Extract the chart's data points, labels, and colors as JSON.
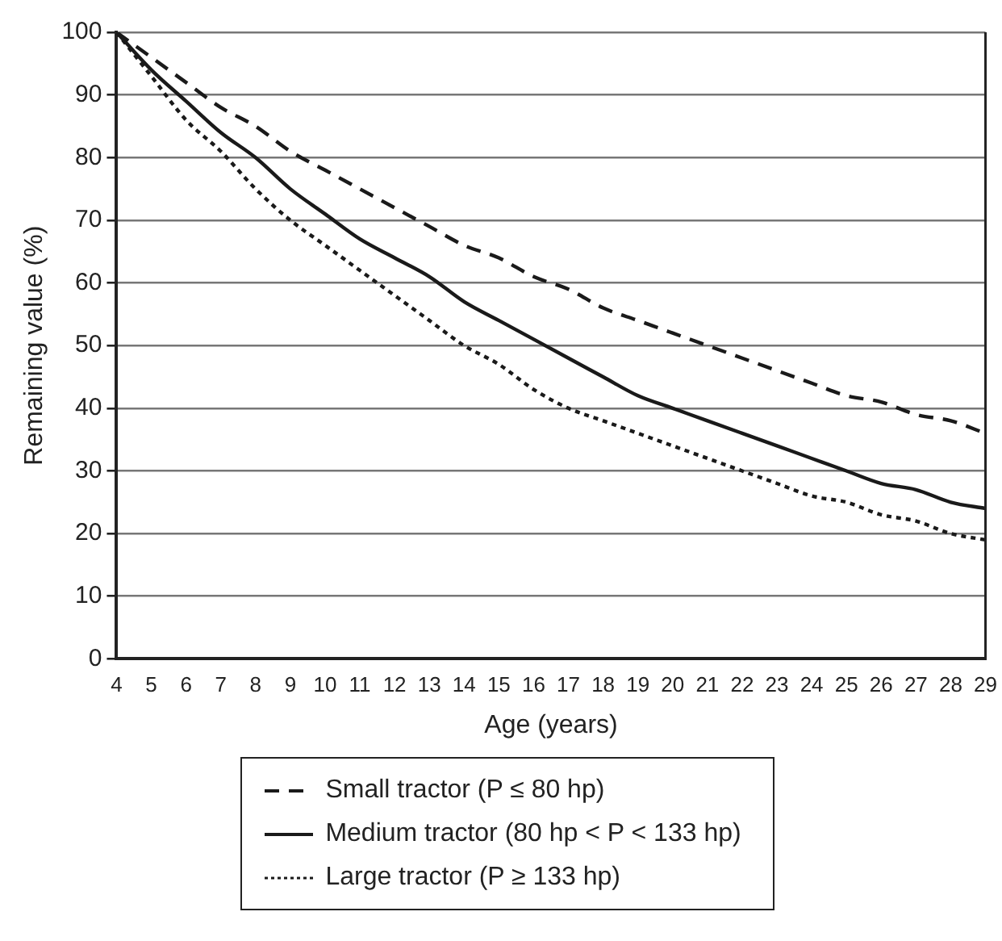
{
  "chart_data": {
    "type": "line",
    "xlabel": "Age (years)",
    "ylabel": "Remaining value (%)",
    "x": [
      4,
      5,
      6,
      7,
      8,
      9,
      10,
      11,
      12,
      13,
      14,
      15,
      16,
      17,
      18,
      19,
      20,
      21,
      22,
      23,
      24,
      25,
      26,
      27,
      28,
      29
    ],
    "xlim": [
      4,
      29
    ],
    "xticks": [
      4,
      5,
      6,
      7,
      8,
      9,
      10,
      11,
      12,
      13,
      14,
      15,
      16,
      17,
      18,
      19,
      20,
      21,
      22,
      23,
      24,
      25,
      26,
      27,
      28,
      29
    ],
    "ylim": [
      0,
      100
    ],
    "yticks": [
      0,
      10,
      20,
      30,
      40,
      50,
      60,
      70,
      80,
      90,
      100
    ],
    "grid": "y",
    "legend": "bottom",
    "marker": "none",
    "series": [
      {
        "name": "Small tractor (P ≤ 80 hp)",
        "color": "#1a1a1a",
        "line_style": "dashed",
        "values": [
          100,
          96,
          92,
          88,
          85,
          81,
          78,
          75,
          72,
          69,
          66,
          64,
          61,
          59,
          56,
          54,
          52,
          50,
          48,
          46,
          44,
          42,
          41,
          39,
          38,
          36
        ]
      },
      {
        "name": "Medium tractor (80 hp < P < 133 hp)",
        "color": "#1a1a1a",
        "line_style": "solid",
        "values": [
          100,
          94,
          89,
          84,
          80,
          75,
          71,
          67,
          64,
          61,
          57,
          54,
          51,
          48,
          45,
          42,
          40,
          38,
          36,
          34,
          32,
          30,
          28,
          27,
          25,
          24
        ]
      },
      {
        "name": "Large tractor (P ≥ 133 hp)",
        "color": "#1a1a1a",
        "line_style": "dotted",
        "values": [
          100,
          93,
          86,
          81,
          75,
          70,
          66,
          62,
          58,
          54,
          50,
          47,
          43,
          40,
          38,
          36,
          34,
          32,
          30,
          28,
          26,
          25,
          23,
          22,
          20,
          19
        ]
      }
    ]
  }
}
